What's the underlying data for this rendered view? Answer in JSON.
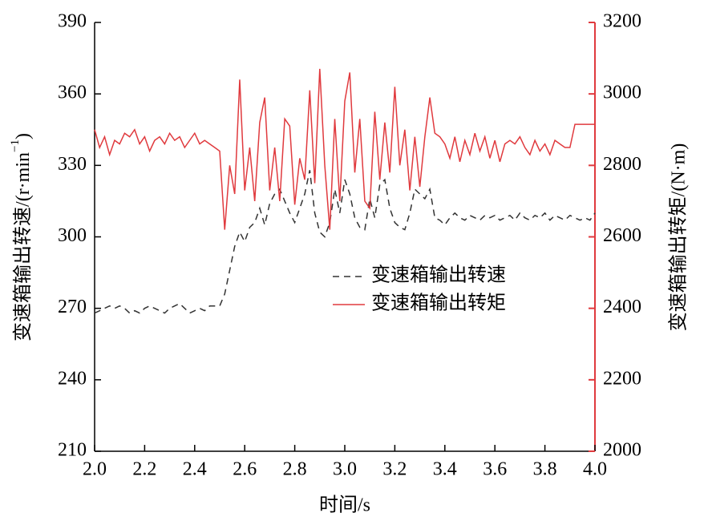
{
  "chart_data": {
    "type": "line",
    "xlabel": "时间/s",
    "ylabel": [
      "变速箱输出转速/(r·min",
      "−1",
      ")"
    ],
    "y2label": "变速箱输出转矩/(N·m)",
    "legend": "center",
    "x": [
      2.0,
      2.02,
      2.04,
      2.06,
      2.08,
      2.1,
      2.12,
      2.14,
      2.16,
      2.18,
      2.2,
      2.22,
      2.24,
      2.26,
      2.28,
      2.3,
      2.32,
      2.34,
      2.36,
      2.38,
      2.4,
      2.42,
      2.44,
      2.46,
      2.48,
      2.5,
      2.52,
      2.54,
      2.56,
      2.58,
      2.6,
      2.62,
      2.64,
      2.66,
      2.68,
      2.7,
      2.72,
      2.74,
      2.76,
      2.78,
      2.8,
      2.82,
      2.84,
      2.86,
      2.88,
      2.9,
      2.92,
      2.94,
      2.96,
      2.98,
      3.0,
      3.02,
      3.04,
      3.06,
      3.08,
      3.1,
      3.12,
      3.14,
      3.16,
      3.18,
      3.2,
      3.22,
      3.24,
      3.26,
      3.28,
      3.3,
      3.32,
      3.34,
      3.36,
      3.38,
      3.4,
      3.42,
      3.44,
      3.46,
      3.48,
      3.5,
      3.52,
      3.54,
      3.56,
      3.58,
      3.6,
      3.62,
      3.64,
      3.66,
      3.68,
      3.7,
      3.72,
      3.74,
      3.76,
      3.78,
      3.8,
      3.82,
      3.84,
      3.86,
      3.88,
      3.9,
      3.92,
      3.94,
      3.96,
      3.98,
      4.0
    ],
    "series": [
      {
        "name": "变速箱输出转速",
        "color": "#333333",
        "dash": true,
        "axis": "y",
        "values": [
          268,
          269,
          270,
          271,
          270,
          271,
          270,
          268,
          269,
          268,
          270,
          271,
          270,
          269,
          268,
          270,
          271,
          272,
          270,
          268,
          269,
          270,
          269,
          271,
          271,
          271,
          276,
          286,
          296,
          302,
          298,
          304,
          306,
          312,
          305,
          314,
          318,
          320,
          315,
          310,
          306,
          312,
          318,
          328,
          310,
          302,
          300,
          306,
          320,
          310,
          324,
          318,
          308,
          304,
          303,
          316,
          308,
          322,
          324,
          312,
          306,
          304,
          303,
          310,
          320,
          318,
          316,
          320,
          308,
          307,
          305,
          308,
          310,
          308,
          307,
          309,
          308,
          307,
          309,
          308,
          309,
          307,
          308,
          309,
          307,
          310,
          308,
          307,
          309,
          308,
          310,
          307,
          309,
          308,
          307,
          309,
          308,
          307,
          308,
          307,
          310
        ]
      },
      {
        "name": "变速箱输出转矩",
        "color": "#e03a3e",
        "dash": false,
        "axis": "y2",
        "values": [
          2900,
          2850,
          2880,
          2830,
          2870,
          2860,
          2890,
          2880,
          2900,
          2860,
          2880,
          2840,
          2870,
          2880,
          2860,
          2890,
          2870,
          2880,
          2850,
          2870,
          2890,
          2860,
          2870,
          2860,
          2850,
          2840,
          2620,
          2800,
          2720,
          3040,
          2730,
          2850,
          2700,
          2920,
          2990,
          2730,
          2850,
          2700,
          2930,
          2910,
          2690,
          2820,
          2760,
          3010,
          2750,
          3070,
          2800,
          2620,
          2930,
          2700,
          2980,
          3060,
          2780,
          2930,
          2700,
          2680,
          2950,
          2760,
          2920,
          2780,
          3020,
          2800,
          2900,
          2730,
          2880,
          2740,
          2880,
          2990,
          2890,
          2880,
          2860,
          2820,
          2880,
          2810,
          2870,
          2830,
          2890,
          2840,
          2880,
          2820,
          2870,
          2810,
          2860,
          2870,
          2860,
          2880,
          2850,
          2830,
          2870,
          2840,
          2860,
          2830,
          2870,
          2860,
          2850,
          2850,
          2915,
          2915,
          2915,
          2915,
          2915
        ]
      }
    ],
    "xlim": [
      2.0,
      4.0
    ],
    "xticks": [
      {
        "value": 2.0,
        "label": "2.0"
      },
      2.2,
      2.4,
      2.6,
      2.8,
      {
        "value": 3.0,
        "label": "3.0"
      },
      3.2,
      3.4,
      3.6,
      3.8,
      {
        "value": 4.0,
        "label": "4.0"
      }
    ],
    "ylim": [
      210,
      390
    ],
    "yticks": [
      210,
      240,
      270,
      300,
      330,
      360,
      390
    ],
    "y2lim": [
      2000,
      3200
    ],
    "y2ticks": [
      2000,
      2200,
      2400,
      2600,
      2800,
      3000,
      3200
    ],
    "y2color": "#e03a3e"
  }
}
